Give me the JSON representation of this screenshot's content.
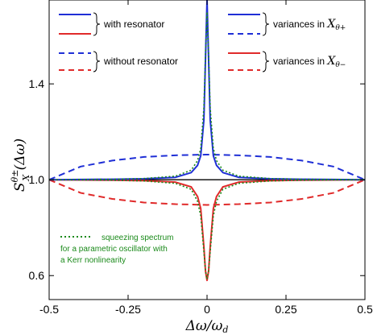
{
  "chart_data": {
    "type": "line",
    "xlabel": "Δω/ω_d",
    "ylabel": "S_X^{θ±}(Δω)",
    "xlim": [
      -0.5,
      0.5
    ],
    "ylim": [
      0.5,
      1.75
    ],
    "x_ticks": [
      -0.5,
      -0.25,
      0,
      0.25,
      0.5
    ],
    "x_tick_labels": [
      "-0.5",
      "-0.25",
      "0",
      "0.25",
      "0.5"
    ],
    "y_ticks": [
      0.6,
      1.0,
      1.4
    ],
    "y_tick_labels": [
      "0.6",
      "1.0",
      "1.4"
    ],
    "grid": false,
    "legend_position": "top",
    "legend": {
      "with_resonator": "with resonator",
      "without_resonator": "without resonator",
      "variances_plus_prefix": "variances in",
      "variances_minus_prefix": "variances in",
      "variances_plus_var": "X",
      "variances_plus_sub": "θ+",
      "variances_minus_var": "X",
      "variances_minus_sub": "θ−"
    },
    "annotation": [
      "squeezing spectrum",
      "for a parametric oscillator with",
      "a Kerr nonlinearity"
    ],
    "colors": {
      "plus": "#1f2fd6",
      "minus": "#e02a2a",
      "reference": "#1a8a1a",
      "baseline": "#000000"
    },
    "series": [
      {
        "line": "solid",
        "color": "blue",
        "x": [
          -0.5,
          -0.4,
          -0.3,
          -0.2,
          -0.1,
          -0.05,
          -0.03,
          -0.02,
          -0.01,
          -0.005,
          0,
          0.005,
          0.01,
          0.02,
          0.03,
          0.05,
          0.1,
          0.2,
          0.3,
          0.4,
          0.5
        ],
        "y": [
          1.0,
          1.001,
          1.002,
          1.004,
          1.01,
          1.03,
          1.06,
          1.1,
          1.25,
          1.5,
          1.75,
          1.5,
          1.25,
          1.1,
          1.06,
          1.03,
          1.01,
          1.004,
          1.002,
          1.001,
          1.0
        ]
      },
      {
        "line": "solid",
        "color": "red",
        "x": [
          -0.5,
          -0.4,
          -0.3,
          -0.2,
          -0.1,
          -0.05,
          -0.03,
          -0.02,
          -0.01,
          -0.005,
          0,
          0.005,
          0.01,
          0.02,
          0.03,
          0.05,
          0.1,
          0.2,
          0.3,
          0.4,
          0.5
        ],
        "y": [
          1.0,
          0.999,
          0.998,
          0.996,
          0.99,
          0.97,
          0.93,
          0.88,
          0.72,
          0.62,
          0.58,
          0.62,
          0.72,
          0.88,
          0.93,
          0.97,
          0.99,
          0.996,
          0.998,
          0.999,
          1.0
        ]
      },
      {
        "line": "dashed",
        "color": "blue",
        "x": [
          -0.5,
          -0.4,
          -0.3,
          -0.2,
          -0.1,
          0,
          0.1,
          0.2,
          0.3,
          0.4,
          0.5
        ],
        "y": [
          1.0,
          1.055,
          1.08,
          1.095,
          1.102,
          1.105,
          1.102,
          1.095,
          1.08,
          1.055,
          1.0
        ]
      },
      {
        "line": "dashed",
        "color": "red",
        "x": [
          -0.5,
          -0.4,
          -0.3,
          -0.2,
          -0.1,
          0,
          0.1,
          0.2,
          0.3,
          0.4,
          0.5
        ],
        "y": [
          1.0,
          0.945,
          0.92,
          0.905,
          0.898,
          0.895,
          0.898,
          0.905,
          0.92,
          0.945,
          1.0
        ]
      },
      {
        "line": "dotted",
        "color": "green",
        "x": [
          -0.5,
          -0.3,
          -0.2,
          -0.1,
          -0.05,
          -0.03,
          -0.02,
          -0.01,
          -0.005,
          0,
          0.005,
          0.01,
          0.02,
          0.03,
          0.05,
          0.1,
          0.2,
          0.3,
          0.5
        ],
        "y": [
          1.0,
          1.002,
          1.005,
          1.015,
          1.04,
          1.08,
          1.13,
          1.3,
          1.52,
          1.7,
          1.52,
          1.3,
          1.13,
          1.08,
          1.04,
          1.015,
          1.005,
          1.002,
          1.0
        ]
      },
      {
        "line": "dotted",
        "color": "green",
        "x": [
          -0.5,
          -0.3,
          -0.2,
          -0.1,
          -0.05,
          -0.03,
          -0.02,
          -0.01,
          -0.005,
          0,
          0.005,
          0.01,
          0.02,
          0.03,
          0.05,
          0.1,
          0.2,
          0.3,
          0.5
        ],
        "y": [
          1.0,
          0.998,
          0.995,
          0.985,
          0.96,
          0.91,
          0.85,
          0.7,
          0.62,
          0.585,
          0.62,
          0.7,
          0.85,
          0.91,
          0.96,
          0.985,
          0.995,
          0.998,
          1.0
        ]
      },
      {
        "line": "solid",
        "color": "black",
        "x": [
          -0.5,
          0.5
        ],
        "y": [
          1.0,
          1.0
        ]
      }
    ]
  }
}
